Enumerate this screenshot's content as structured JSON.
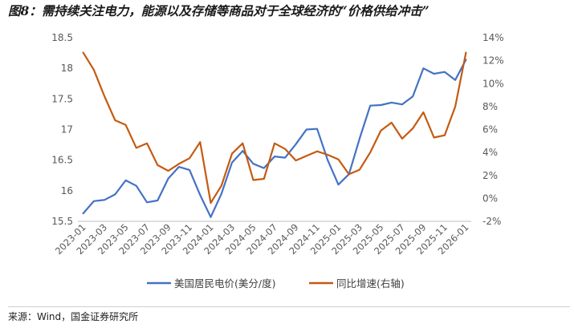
{
  "figure": {
    "title": "图8：需持续关注电力，能源以及存储等商品对于全球经济的“价格供给冲击”",
    "source": "来源：Wind，国金证券研究所"
  },
  "chart_data": {
    "type": "line",
    "x": [
      "2023-01",
      "2023-02",
      "2023-03",
      "2023-04",
      "2023-05",
      "2023-06",
      "2023-07",
      "2023-08",
      "2023-09",
      "2023-10",
      "2023-11",
      "2023-12",
      "2024-01",
      "2024-02",
      "2024-03",
      "2024-04",
      "2024-05",
      "2024-06",
      "2024-07",
      "2024-08",
      "2024-09",
      "2024-10",
      "2024-11",
      "2024-12",
      "2025-01",
      "2025-02",
      "2025-03",
      "2025-04",
      "2025-05",
      "2025-06",
      "2025-07",
      "2025-08",
      "2025-09",
      "2025-10",
      "2025-11",
      "2025-12",
      "2026-01"
    ],
    "x_tick_labels": [
      "2023-01",
      "2023-03",
      "2023-05",
      "2023-07",
      "2023-09",
      "2023-11",
      "2024-01",
      "2024-03",
      "2024-05",
      "2024-07",
      "2024-09",
      "2024-11",
      "2025-01",
      "2025-03",
      "2025-05",
      "2025-07",
      "2025-09",
      "2025-11",
      "2026-01"
    ],
    "series": [
      {
        "name": "美国居民电价(美分/度)",
        "axis": "left",
        "color": "#4472C4",
        "values": [
          15.63,
          15.83,
          15.85,
          15.94,
          16.17,
          16.08,
          15.81,
          15.84,
          16.2,
          16.39,
          16.34,
          15.93,
          15.57,
          15.95,
          16.46,
          16.65,
          16.44,
          16.37,
          16.56,
          16.54,
          16.76,
          17.0,
          17.01,
          16.5,
          16.1,
          16.27,
          16.85,
          17.39,
          17.4,
          17.44,
          17.41,
          17.54,
          18.0,
          17.91,
          17.94,
          17.81,
          18.14
        ]
      },
      {
        "name": "同比增速(右轴)",
        "axis": "right",
        "color": "#C55A11",
        "values": [
          12.7,
          11.2,
          8.9,
          6.8,
          6.4,
          4.4,
          4.8,
          2.9,
          2.4,
          3.0,
          3.5,
          4.9,
          -0.4,
          1.1,
          3.9,
          4.8,
          1.6,
          1.7,
          4.8,
          4.3,
          3.3,
          3.7,
          4.1,
          3.8,
          3.4,
          2.1,
          2.5,
          4.0,
          5.9,
          6.6,
          5.2,
          6.1,
          7.5,
          5.3,
          5.5,
          8.0,
          12.7
        ]
      }
    ],
    "y_left": {
      "min": 15.5,
      "max": 18.5,
      "step": 0.5,
      "tick_labels": [
        "15.5",
        "16",
        "16.5",
        "17",
        "17.5",
        "18",
        "18.5"
      ]
    },
    "y_right": {
      "min": -2,
      "max": 14,
      "step": 2,
      "tick_labels": [
        "-2%",
        "0%",
        "2%",
        "4%",
        "6%",
        "8%",
        "10%",
        "12%",
        "14%"
      ]
    },
    "grid": false,
    "legend_position": "bottom"
  }
}
